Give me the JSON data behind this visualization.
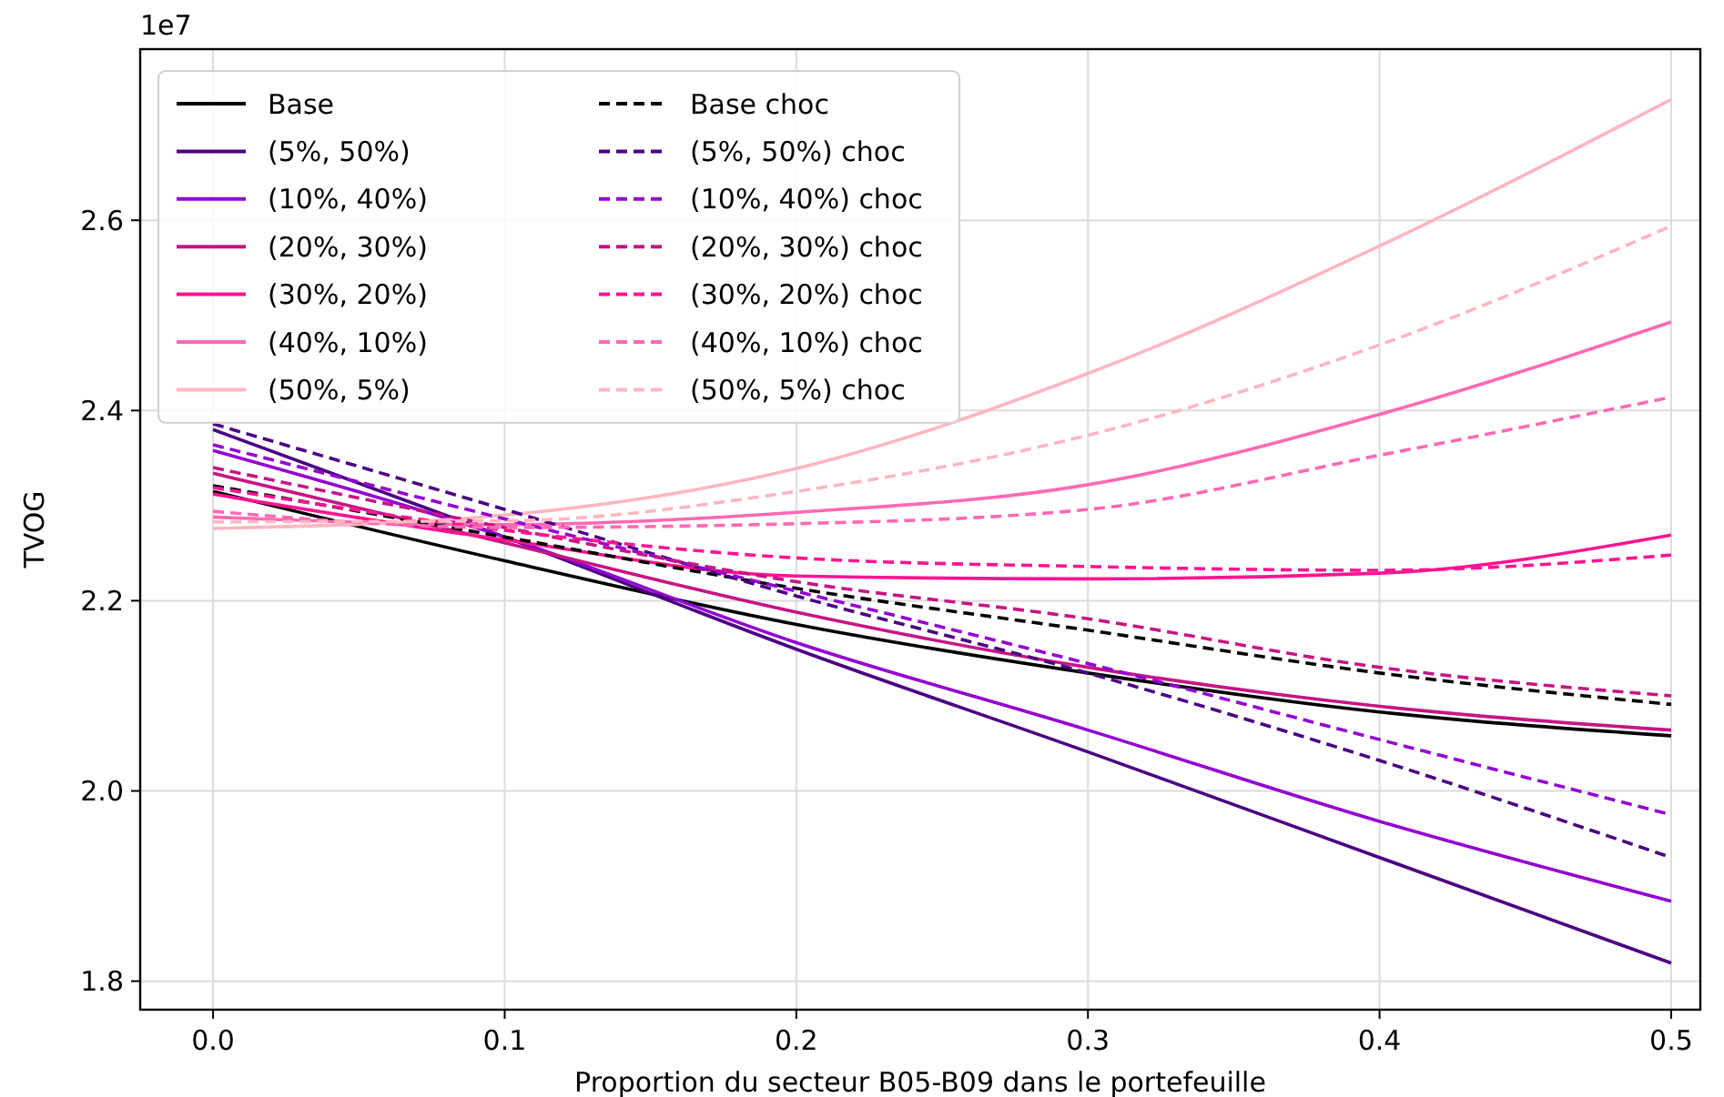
{
  "chart_data": {
    "type": "line",
    "xlabel": "Proportion du secteur B05-B09 dans le portefeuille",
    "ylabel": "TVOG",
    "annotations": [
      "1e7"
    ],
    "x": [
      0,
      0.1,
      0.2,
      0.3,
      0.4,
      0.5
    ],
    "xlim": [
      -0.025,
      0.51
    ],
    "xticks": [
      {
        "value": 0,
        "label": "0.0"
      },
      0.1,
      0.2,
      0.3,
      0.4,
      0.5
    ],
    "ylim": [
      1.77,
      2.78
    ],
    "yticks": [
      1.8,
      {
        "value": 2,
        "label": "2.0"
      },
      2.2,
      2.4,
      2.6
    ],
    "grid": true,
    "legend": "top left",
    "marker": "none",
    "series": [
      {
        "name": "Base",
        "color": "#000000",
        "line_style": "solid",
        "values": [
          2.315,
          2.242,
          2.175,
          2.124,
          2.083,
          2.058
        ]
      },
      {
        "name": "(5%, 50%)",
        "color": "#4b0082",
        "line_style": "solid",
        "values": [
          2.38,
          2.267,
          2.149,
          2.041,
          1.93,
          1.819
        ]
      },
      {
        "name": "(10%, 40%)",
        "color": "#9400d3",
        "line_style": "solid",
        "values": [
          2.358,
          2.267,
          2.156,
          2.064,
          1.968,
          1.884
        ]
      },
      {
        "name": "(20%, 30%)",
        "color": "#c71585",
        "line_style": "solid",
        "values": [
          2.334,
          2.261,
          2.188,
          2.13,
          2.089,
          2.064
        ]
      },
      {
        "name": "(30%, 20%)",
        "color": "#ff1493",
        "line_style": "solid",
        "values": [
          2.312,
          2.264,
          2.226,
          2.223,
          2.229,
          2.269
        ]
      },
      {
        "name": "(40%, 10%)",
        "color": "#ff69b4",
        "line_style": "solid",
        "values": [
          2.288,
          2.28,
          2.293,
          2.322,
          2.396,
          2.493
        ]
      },
      {
        "name": "(50%, 5%)",
        "color": "#ffb6c1",
        "line_style": "solid",
        "values": [
          2.276,
          2.29,
          2.339,
          2.439,
          2.573,
          2.727
        ]
      },
      {
        "name": "Base choc",
        "color": "#000000",
        "line_style": "dashed",
        "values": [
          2.321,
          2.267,
          2.213,
          2.169,
          2.124,
          2.091
        ]
      },
      {
        "name": "(5%, 50%) choc",
        "color": "#4b0082",
        "line_style": "dashed",
        "values": [
          2.386,
          2.296,
          2.205,
          2.124,
          2.032,
          1.93
        ]
      },
      {
        "name": "(10%, 40%) choc",
        "color": "#9400d3",
        "line_style": "dashed",
        "values": [
          2.364,
          2.286,
          2.21,
          2.134,
          2.054,
          1.975
        ]
      },
      {
        "name": "(20%, 30%) choc",
        "color": "#c71585",
        "line_style": "dashed",
        "values": [
          2.34,
          2.277,
          2.22,
          2.181,
          2.13,
          2.1
        ]
      },
      {
        "name": "(30%, 20%) choc",
        "color": "#ff1493",
        "line_style": "dashed",
        "values": [
          2.319,
          2.274,
          2.245,
          2.236,
          2.232,
          2.248
        ]
      },
      {
        "name": "(40%, 10%) choc",
        "color": "#ff69b4",
        "line_style": "dashed",
        "values": [
          2.294,
          2.277,
          2.281,
          2.296,
          2.353,
          2.414
        ]
      },
      {
        "name": "(50%, 5%) choc",
        "color": "#ffb6c1",
        "line_style": "dashed",
        "values": [
          2.283,
          2.284,
          2.315,
          2.374,
          2.469,
          2.594
        ]
      }
    ]
  }
}
